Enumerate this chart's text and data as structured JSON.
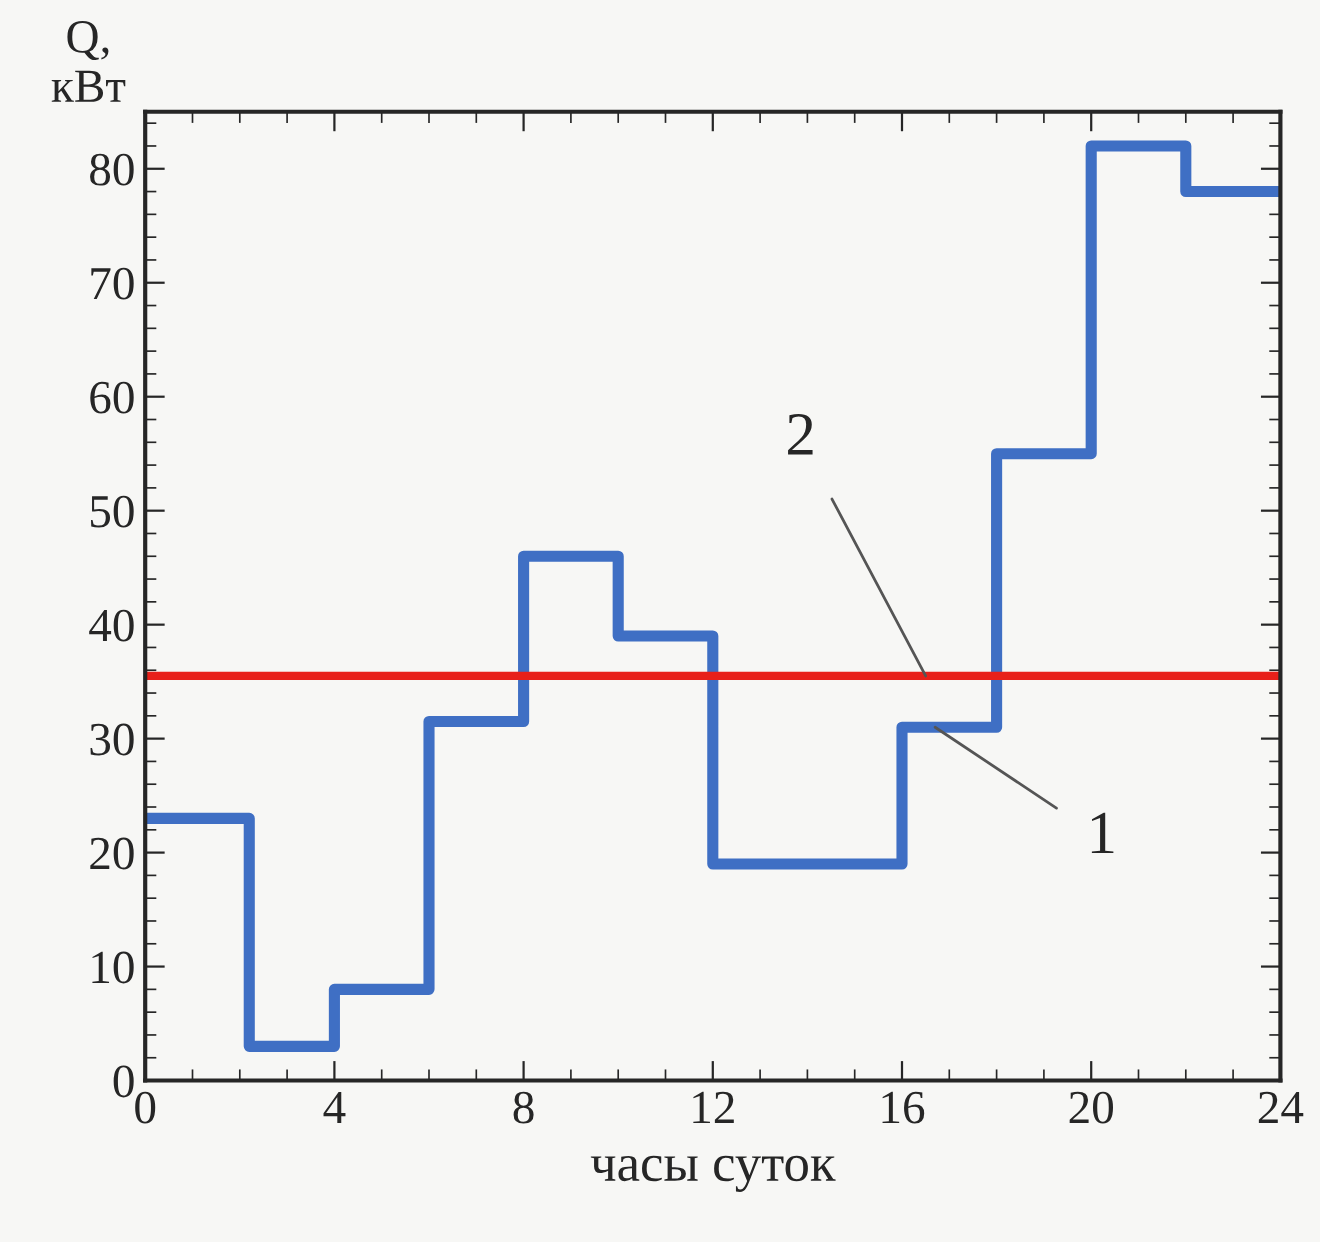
{
  "chart_data": {
    "type": "step",
    "xlabel": "часы суток",
    "ylabel": "Q,\nкВт",
    "series": [
      {
        "color": "#3f6fc4",
        "x": [
          0,
          2.2,
          4,
          6,
          8,
          10,
          12,
          16,
          18,
          20,
          22,
          24
        ],
        "values": [
          23,
          3,
          8,
          31.5,
          46,
          39,
          19,
          31,
          55,
          82,
          78,
          78
        ]
      }
    ],
    "ref_lines": [
      {
        "axis": "y",
        "value": 35.5,
        "color": "#e8201a"
      }
    ],
    "annotations": [
      {
        "text": "1",
        "x": 16.7,
        "y": 31
      },
      {
        "text": "2",
        "x": 16.5,
        "y": 35.5
      }
    ],
    "xlim": [
      0,
      24
    ],
    "ylim": [
      0,
      85
    ],
    "xticks": [
      0,
      4,
      8,
      12,
      16,
      20,
      24
    ],
    "yticks": [
      0,
      10,
      20,
      30,
      40,
      50,
      60,
      70,
      80
    ],
    "grid": false
  }
}
